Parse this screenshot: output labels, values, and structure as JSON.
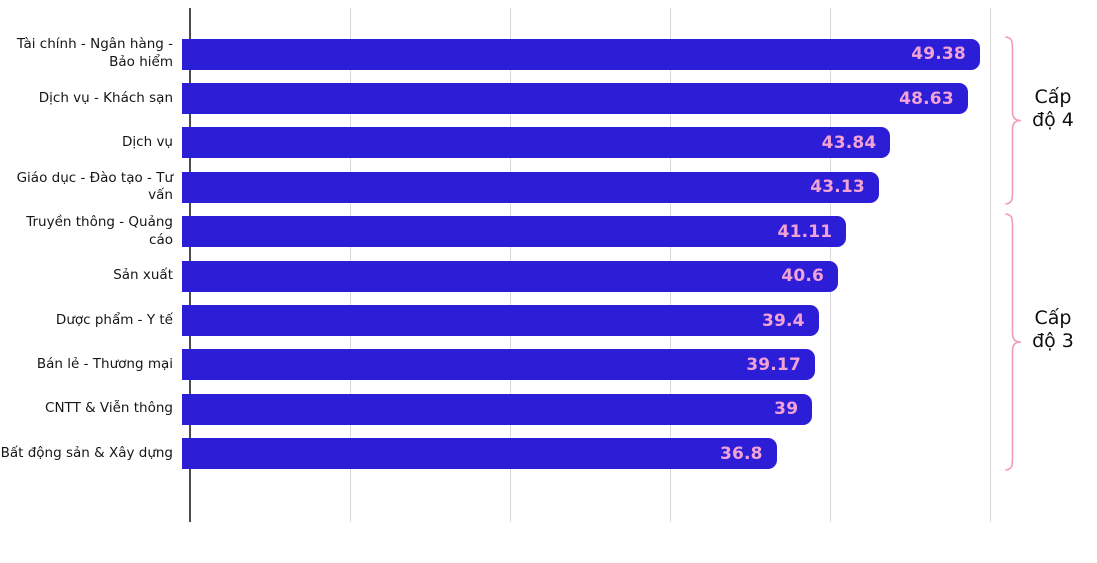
{
  "chart_data": {
    "type": "bar",
    "orientation": "horizontal",
    "title": "",
    "xlabel": "",
    "ylabel": "",
    "categories": [
      "Tài chính - Ngân hàng - Bảo hiểm",
      "Dịch vụ - Khách sạn",
      "Dịch vụ",
      "Giáo dục - Đào tạo - Tư vấn",
      "Truyền thông - Quảng cáo",
      "Sản xuất",
      "Dược phẩm - Y tế",
      "Bán lẻ - Thương mại",
      "CNTT & Viễn thông",
      "Bất động sản & Xây dựng"
    ],
    "values": [
      49.38,
      48.63,
      43.84,
      43.13,
      41.11,
      40.6,
      39.4,
      39.17,
      39,
      36.8
    ],
    "value_labels": [
      "49.38",
      "48.63",
      "43.84",
      "43.13",
      "41.11",
      "40.6",
      "39.4",
      "39.17",
      "39",
      "36.8"
    ],
    "xlim": [
      0,
      50
    ],
    "gridline_interval": 10,
    "grid": true,
    "legend": "none",
    "bar_color": "#2c1ed6",
    "value_label_color": "#f2a2d5",
    "axis_color": "#4d4d4d",
    "gridline_color": "#d7d7d7",
    "annotation_color": "#f19bb5",
    "annotations": [
      {
        "label": "Cấp độ 4",
        "from_bar": 0,
        "to_bar": 3
      },
      {
        "label": "Cấp độ 3",
        "from_bar": 4,
        "to_bar": 9
      }
    ]
  }
}
